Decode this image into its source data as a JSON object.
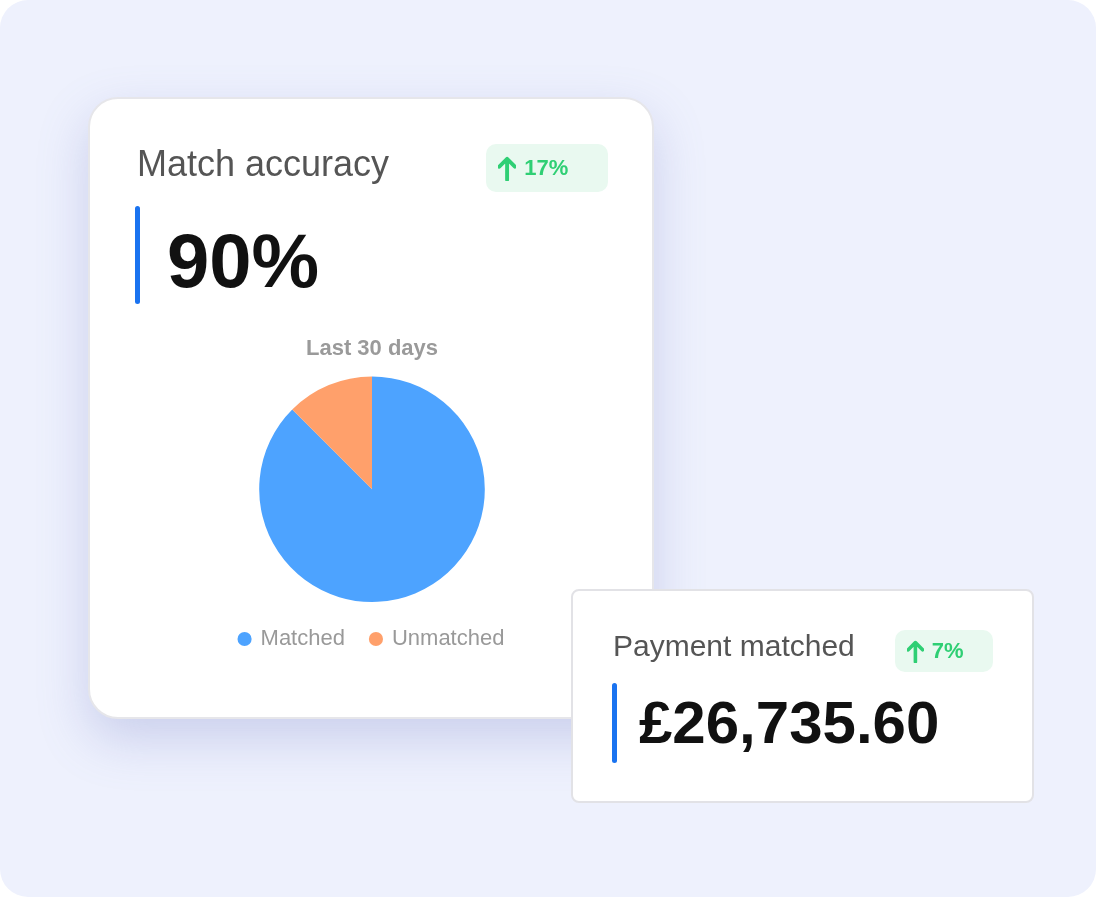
{
  "chart_data": [
    {
      "type": "pie",
      "title": "Last 30 days",
      "categories": [
        "Matched",
        "Unmatched"
      ],
      "values": [
        87.5,
        12.5
      ],
      "colors": [
        "#4da3ff",
        "#ffa06b"
      ],
      "legend": "bottom",
      "annotations": [
        "Match accuracy",
        "90%",
        "17%"
      ]
    },
    {
      "type": "other",
      "title": "Payment matched",
      "annotations": [
        "£26,735.60",
        "7%"
      ]
    }
  ]
}
